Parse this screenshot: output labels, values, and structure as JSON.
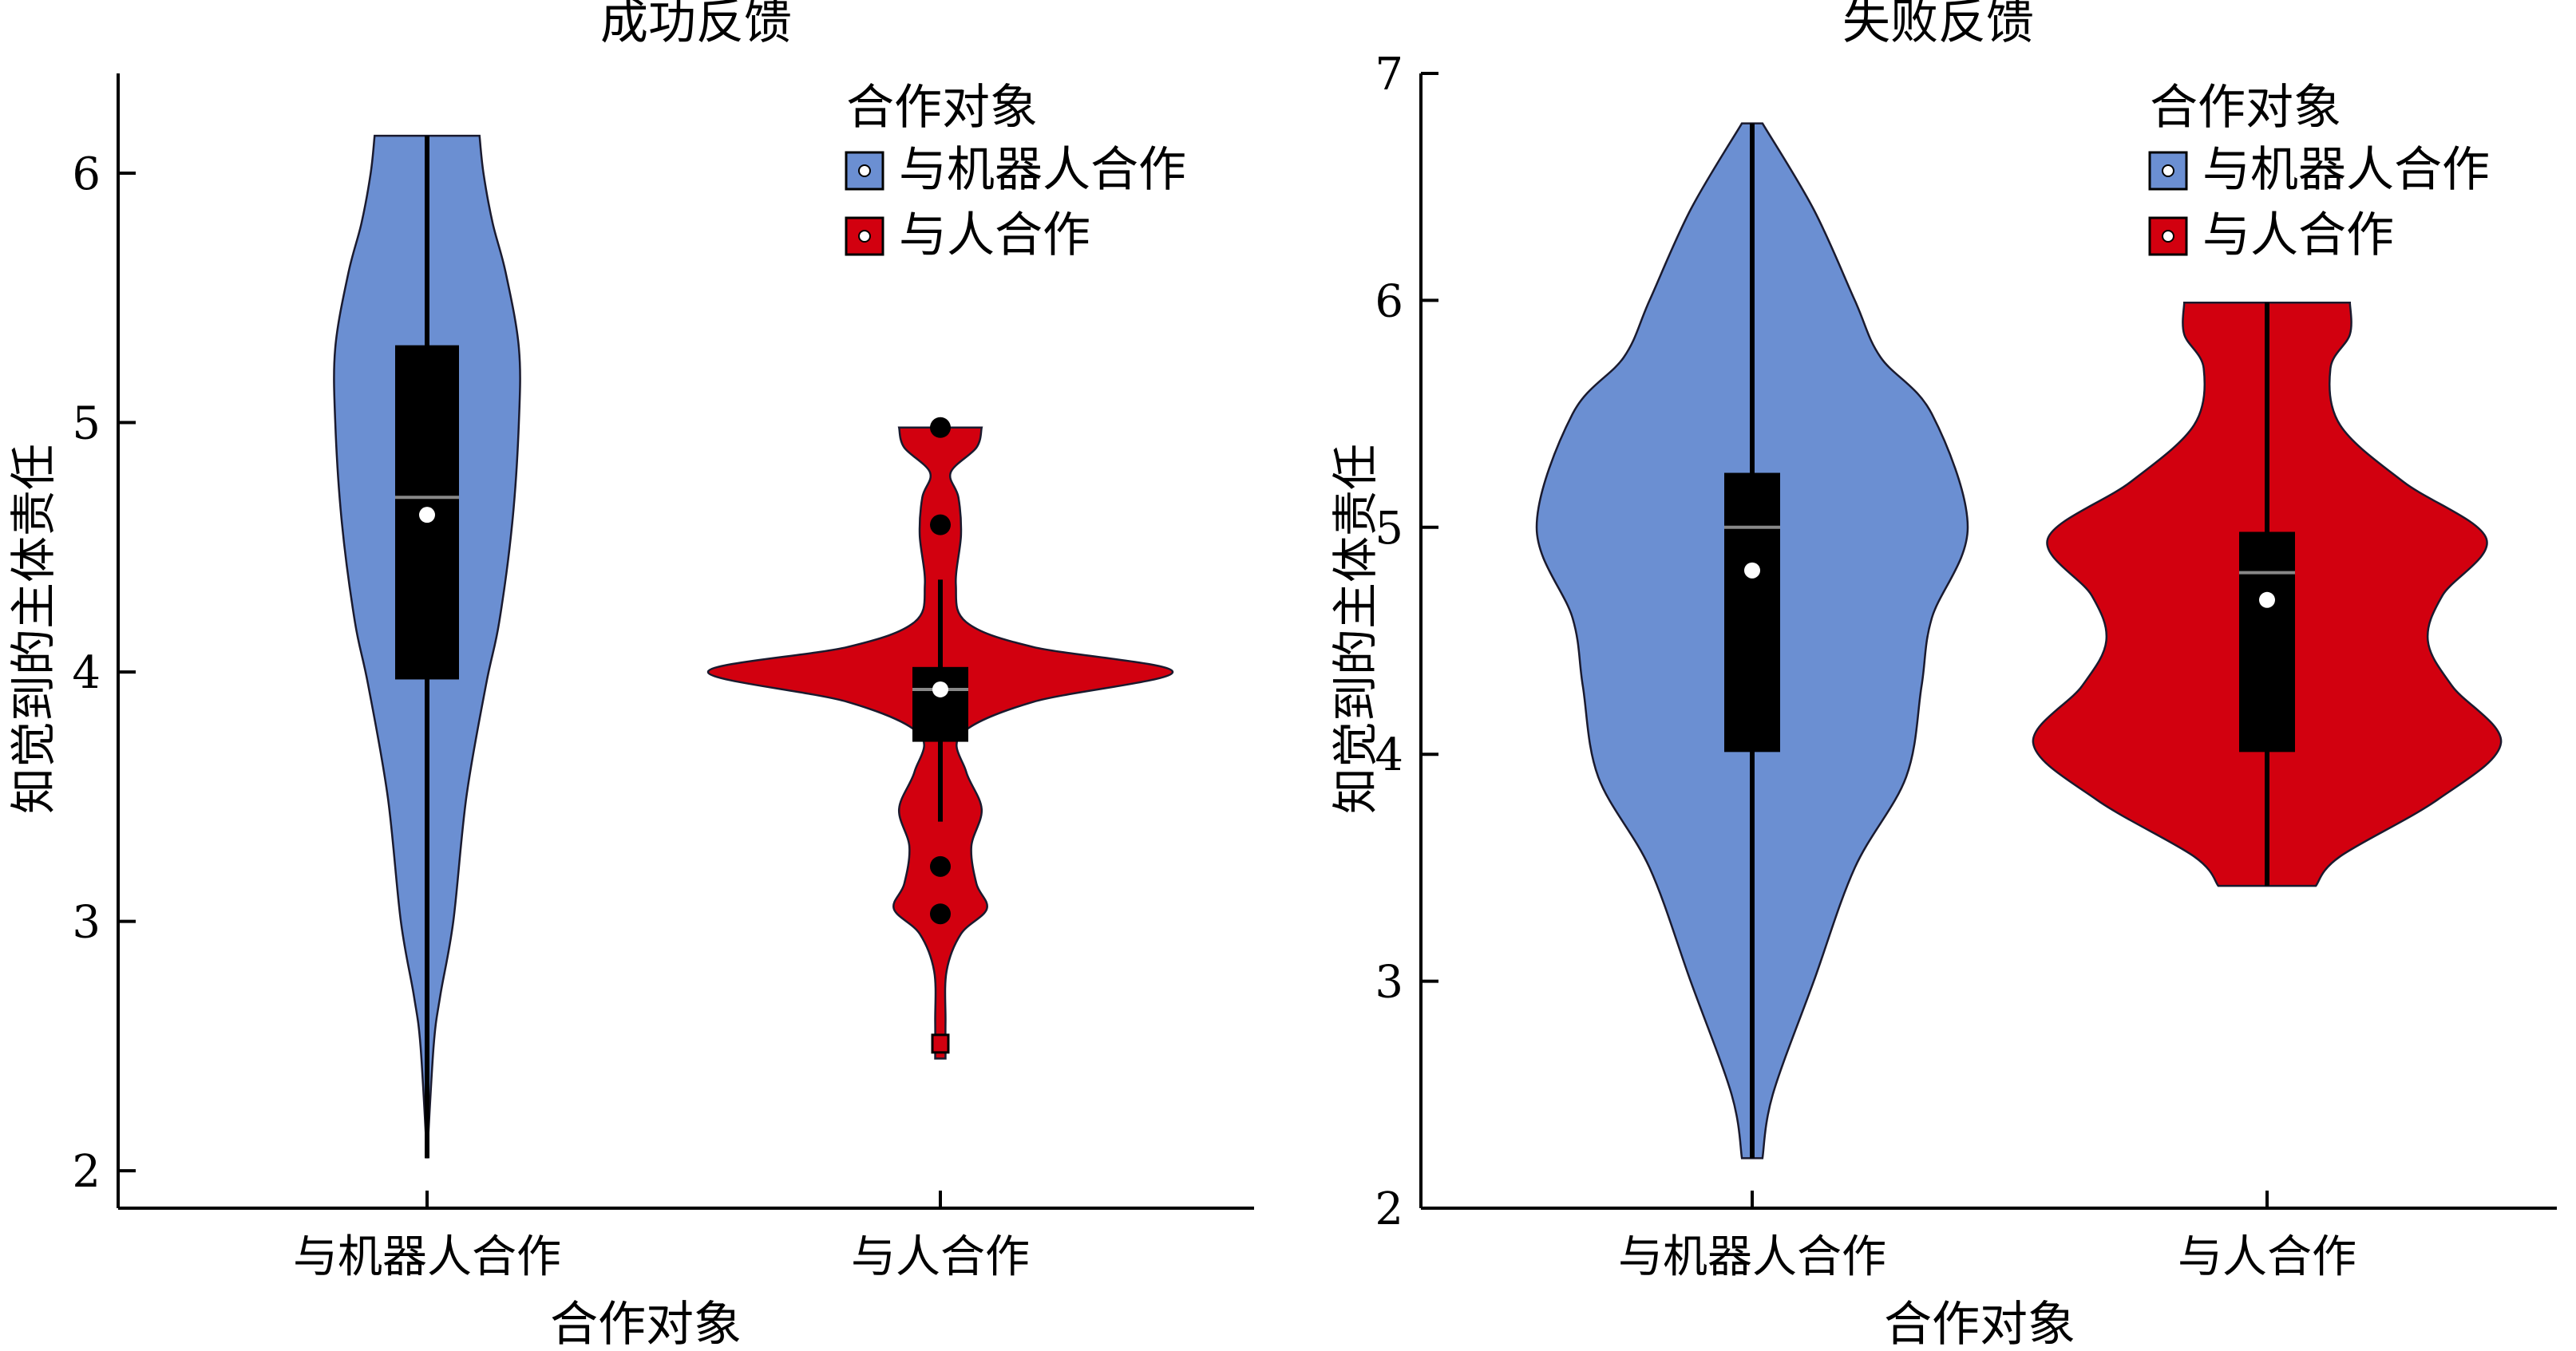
{
  "colors": {
    "robot": "#6b8fd2",
    "human": "#d2000f",
    "box": "#000000",
    "median_line": "#888888",
    "mean_dot": "#ffffff",
    "outlier": "#000000"
  },
  "chart_data": [
    {
      "type": "violin",
      "title": "成功反馈",
      "xlabel": "合作对象",
      "ylabel": "知觉到的主体责任",
      "ylim": [
        1.85,
        6.4
      ],
      "yticks": [
        2,
        3,
        4,
        5,
        6
      ],
      "categories": [
        "与机器人合作",
        "与人合作"
      ],
      "legend": {
        "title": "合作对象",
        "entries": [
          "与机器人合作",
          "与人合作"
        ],
        "placement": "top-right"
      },
      "series": [
        {
          "name": "与机器人合作",
          "color_key": "robot",
          "density": [
            [
              2.05,
              0.0
            ],
            [
              2.5,
              0.005
            ],
            [
              2.7,
              0.01
            ],
            [
              3.0,
              0.02
            ],
            [
              3.5,
              0.03
            ],
            [
              3.95,
              0.045
            ],
            [
              4.2,
              0.055
            ],
            [
              4.6,
              0.065
            ],
            [
              5.0,
              0.07
            ],
            [
              5.3,
              0.07
            ],
            [
              5.6,
              0.06
            ],
            [
              5.8,
              0.05
            ],
            [
              6.0,
              0.043
            ],
            [
              6.15,
              0.04
            ]
          ],
          "whisker": [
            2.05,
            6.15
          ],
          "q1": 3.97,
          "q3": 5.31,
          "median": 4.7,
          "mean": 4.63,
          "outliers": []
        },
        {
          "name": "与人合作",
          "color_key": "human",
          "density": [
            [
              2.45,
              0.01
            ],
            [
              2.6,
              0.01
            ],
            [
              2.8,
              0.012
            ],
            [
              2.95,
              0.04
            ],
            [
              3.05,
              0.09
            ],
            [
              3.15,
              0.07
            ],
            [
              3.3,
              0.06
            ],
            [
              3.45,
              0.08
            ],
            [
              3.6,
              0.05
            ],
            [
              3.75,
              0.04
            ],
            [
              3.88,
              0.18
            ],
            [
              4.0,
              0.45
            ],
            [
              4.1,
              0.18
            ],
            [
              4.2,
              0.05
            ],
            [
              4.35,
              0.03
            ],
            [
              4.55,
              0.04
            ],
            [
              4.7,
              0.035
            ],
            [
              4.8,
              0.02
            ],
            [
              4.9,
              0.07
            ],
            [
              4.98,
              0.08
            ]
          ],
          "whisker": [
            3.4,
            4.37
          ],
          "q1": 3.72,
          "q3": 4.02,
          "median": 3.93,
          "mean": 3.93,
          "outliers": [
            4.98,
            4.59,
            3.22,
            3.03,
            2.5
          ]
        }
      ]
    },
    {
      "type": "violin",
      "title": "失败反馈",
      "xlabel": "合作对象",
      "ylabel": "知觉到的主体责任",
      "ylim": [
        2.0,
        7.0
      ],
      "yticks": [
        2,
        3,
        4,
        5,
        6,
        7
      ],
      "categories": [
        "与机器人合作",
        "与人合作"
      ],
      "legend": {
        "title": "合作对象",
        "entries": [
          "与机器人合作",
          "与人合作"
        ],
        "placement": "top-right"
      },
      "series": [
        {
          "name": "与机器人合作",
          "color_key": "robot",
          "density": [
            [
              2.22,
              0.02
            ],
            [
              2.5,
              0.04
            ],
            [
              3.0,
              0.12
            ],
            [
              3.5,
              0.2
            ],
            [
              3.9,
              0.3
            ],
            [
              4.3,
              0.33
            ],
            [
              4.6,
              0.35
            ],
            [
              5.0,
              0.42
            ],
            [
              5.5,
              0.35
            ],
            [
              5.75,
              0.25
            ],
            [
              6.0,
              0.2
            ],
            [
              6.4,
              0.12
            ],
            [
              6.78,
              0.02
            ]
          ],
          "whisker": [
            2.22,
            6.78
          ],
          "q1": 4.01,
          "q3": 5.24,
          "median": 5.0,
          "mean": 4.81,
          "outliers": []
        },
        {
          "name": "与人合作",
          "color_key": "human",
          "density": [
            [
              3.42,
              0.1
            ],
            [
              3.55,
              0.15
            ],
            [
              3.8,
              0.35
            ],
            [
              4.05,
              0.48
            ],
            [
              4.3,
              0.38
            ],
            [
              4.5,
              0.33
            ],
            [
              4.7,
              0.36
            ],
            [
              4.95,
              0.45
            ],
            [
              5.2,
              0.28
            ],
            [
              5.45,
              0.15
            ],
            [
              5.7,
              0.13
            ],
            [
              5.85,
              0.17
            ],
            [
              5.99,
              0.17
            ]
          ],
          "whisker": [
            3.42,
            5.99
          ],
          "q1": 4.01,
          "q3": 4.98,
          "median": 4.8,
          "mean": 4.68,
          "outliers": []
        }
      ]
    }
  ]
}
